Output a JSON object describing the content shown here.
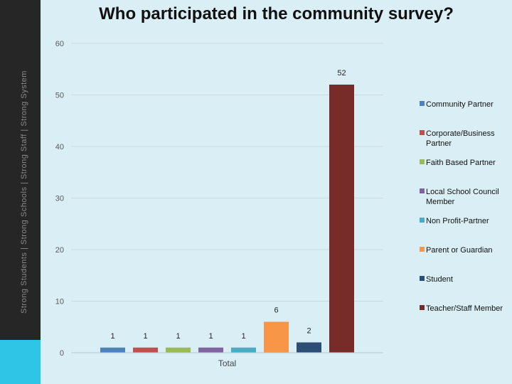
{
  "sidebar": {
    "text": "Strong Students | Strong Schools | Strong Staff | Strong System"
  },
  "chart_data": {
    "type": "bar",
    "title": "Who participated in the community survey?",
    "categories": [
      "Total"
    ],
    "ylim": [
      0,
      60
    ],
    "yticks": [
      0,
      10,
      20,
      30,
      40,
      50,
      60
    ],
    "grid": true,
    "legend_position": "right",
    "series": [
      {
        "name": "Community Partner",
        "values": [
          1
        ],
        "color": "#4f81bd"
      },
      {
        "name": "Corporate/Business Partner",
        "values": [
          1
        ],
        "color": "#c0504d"
      },
      {
        "name": "Faith Based Partner",
        "values": [
          1
        ],
        "color": "#9bbb59"
      },
      {
        "name": "Local School Council Member",
        "values": [
          1
        ],
        "color": "#8064a2"
      },
      {
        "name": "Non Profit-Partner",
        "values": [
          1
        ],
        "color": "#4bacc6"
      },
      {
        "name": "Parent or Guardian",
        "values": [
          6
        ],
        "color": "#f79646"
      },
      {
        "name": "Student",
        "values": [
          2
        ],
        "color": "#2c4d75"
      },
      {
        "name": "Teacher/Staff Member",
        "values": [
          52
        ],
        "color": "#772c2a"
      }
    ]
  }
}
